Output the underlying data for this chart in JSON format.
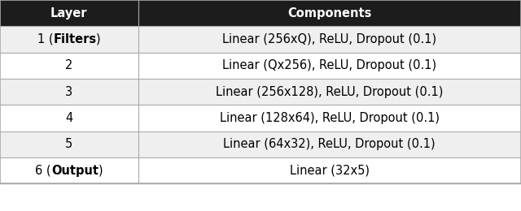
{
  "header": [
    "Layer",
    "Components"
  ],
  "rows": [
    [
      "1 (__Filters__)",
      "Linear (256xQ), ReLU, Dropout (0.1)"
    ],
    [
      "2",
      "Linear (Qx256), ReLU, Dropout (0.1)"
    ],
    [
      "3",
      "Linear (256x128), ReLU, Dropout (0.1)"
    ],
    [
      "4",
      "Linear (128x64), ReLU, Dropout (0.1)"
    ],
    [
      "5",
      "Linear (64x32), ReLU, Dropout (0.1)"
    ],
    [
      "6 (__Output__)",
      "Linear (32x5)"
    ]
  ],
  "header_bg": "#1c1c1c",
  "header_fg": "#ffffff",
  "row_bg_even": "#efefef",
  "row_bg_odd": "#ffffff",
  "border_color": "#aaaaaa",
  "col_split": 0.265,
  "figsize": [
    6.4,
    2.6
  ],
  "dpi": 100,
  "font_size": 10.5,
  "caption_space": 0.13
}
